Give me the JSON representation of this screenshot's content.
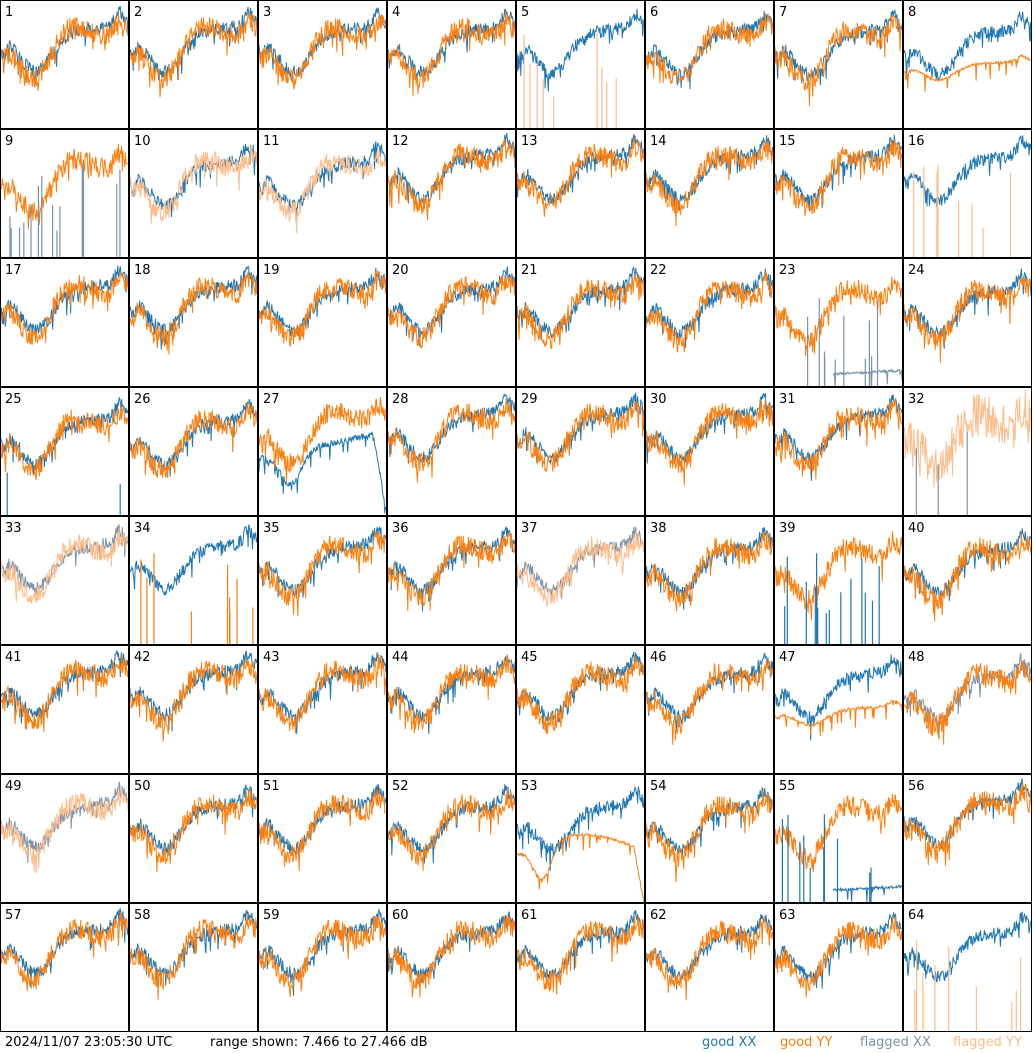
{
  "footer": {
    "timestamp": "2024/11/07 23:05:30 UTC",
    "range_text": "range shown: 7.466 to 27.466 dB",
    "legend": {
      "good_xx": "good XX",
      "good_yy": "good YY",
      "flagged_xx": "flagged XX",
      "flagged_yy": "flagged YY"
    }
  },
  "colors": {
    "good_xx": "#1f77b4",
    "good_yy": "#ff7f0e",
    "flagged_xx": "#7a93ab",
    "flagged_yy": "#ffbb88"
  },
  "chart_data": {
    "type": "line",
    "layout": "small-multiples grid, 8 columns x 8 rows",
    "ylim": [
      7.466,
      27.466
    ],
    "y_unit": "dB",
    "panels": [
      {
        "id": "1",
        "xx": "good",
        "yy": "good",
        "pattern": "normal"
      },
      {
        "id": "2",
        "xx": "good",
        "yy": "good",
        "pattern": "normal"
      },
      {
        "id": "3",
        "xx": "good",
        "yy": "good",
        "pattern": "normal"
      },
      {
        "id": "4",
        "xx": "good",
        "yy": "good",
        "pattern": "normal"
      },
      {
        "id": "5",
        "xx": "good",
        "yy": "flagged",
        "pattern": "yy_spikes"
      },
      {
        "id": "6",
        "xx": "good",
        "yy": "good",
        "pattern": "normal"
      },
      {
        "id": "7",
        "xx": "good",
        "yy": "good",
        "pattern": "normal"
      },
      {
        "id": "8",
        "xx": "good",
        "yy": "good",
        "pattern": "yy_smooth"
      },
      {
        "id": "9",
        "xx": "flagged",
        "yy": "good",
        "pattern": "xx_spikes"
      },
      {
        "id": "10",
        "xx": "good",
        "yy": "flagged",
        "pattern": "normal"
      },
      {
        "id": "11",
        "xx": "good",
        "yy": "flagged",
        "pattern": "normal"
      },
      {
        "id": "12",
        "xx": "good",
        "yy": "good",
        "pattern": "normal"
      },
      {
        "id": "13",
        "xx": "good",
        "yy": "good",
        "pattern": "normal"
      },
      {
        "id": "14",
        "xx": "good",
        "yy": "good",
        "pattern": "normal"
      },
      {
        "id": "15",
        "xx": "good",
        "yy": "good",
        "pattern": "normal"
      },
      {
        "id": "16",
        "xx": "good",
        "yy": "flagged",
        "pattern": "yy_spikes"
      },
      {
        "id": "17",
        "xx": "good",
        "yy": "good",
        "pattern": "normal"
      },
      {
        "id": "18",
        "xx": "good",
        "yy": "good",
        "pattern": "normal"
      },
      {
        "id": "19",
        "xx": "good",
        "yy": "good",
        "pattern": "normal"
      },
      {
        "id": "20",
        "xx": "good",
        "yy": "good",
        "pattern": "normal"
      },
      {
        "id": "21",
        "xx": "good",
        "yy": "good",
        "pattern": "normal"
      },
      {
        "id": "22",
        "xx": "good",
        "yy": "good",
        "pattern": "normal"
      },
      {
        "id": "23",
        "xx": "flagged",
        "yy": "good",
        "pattern": "xx_low"
      },
      {
        "id": "24",
        "xx": "good",
        "yy": "good",
        "pattern": "normal"
      },
      {
        "id": "25",
        "xx": "good",
        "yy": "good",
        "pattern": "xx_few_spikes"
      },
      {
        "id": "26",
        "xx": "good",
        "yy": "good",
        "pattern": "normal"
      },
      {
        "id": "27",
        "xx": "good",
        "yy": "good",
        "pattern": "xx_curve"
      },
      {
        "id": "28",
        "xx": "good",
        "yy": "good",
        "pattern": "normal"
      },
      {
        "id": "29",
        "xx": "good",
        "yy": "good",
        "pattern": "normal"
      },
      {
        "id": "30",
        "xx": "good",
        "yy": "good",
        "pattern": "normal"
      },
      {
        "id": "31",
        "xx": "good",
        "yy": "good",
        "pattern": "normal"
      },
      {
        "id": "32",
        "xx": "flagged",
        "yy": "flagged",
        "pattern": "flagged_noisy"
      },
      {
        "id": "33",
        "xx": "flagged",
        "yy": "flagged",
        "pattern": "flagged_overlay"
      },
      {
        "id": "34",
        "xx": "good",
        "yy": "good",
        "pattern": "yy_spikes"
      },
      {
        "id": "35",
        "xx": "good",
        "yy": "good",
        "pattern": "normal"
      },
      {
        "id": "36",
        "xx": "good",
        "yy": "good",
        "pattern": "normal"
      },
      {
        "id": "37",
        "xx": "flagged",
        "yy": "flagged",
        "pattern": "flagged_overlay"
      },
      {
        "id": "38",
        "xx": "good",
        "yy": "good",
        "pattern": "normal"
      },
      {
        "id": "39",
        "xx": "good",
        "yy": "good",
        "pattern": "xx_spikes"
      },
      {
        "id": "40",
        "xx": "good",
        "yy": "good",
        "pattern": "normal"
      },
      {
        "id": "41",
        "xx": "good",
        "yy": "good",
        "pattern": "normal"
      },
      {
        "id": "42",
        "xx": "good",
        "yy": "good",
        "pattern": "normal"
      },
      {
        "id": "43",
        "xx": "good",
        "yy": "good",
        "pattern": "normal"
      },
      {
        "id": "44",
        "xx": "good",
        "yy": "good",
        "pattern": "normal"
      },
      {
        "id": "45",
        "xx": "good",
        "yy": "good",
        "pattern": "normal"
      },
      {
        "id": "46",
        "xx": "good",
        "yy": "good",
        "pattern": "normal"
      },
      {
        "id": "47",
        "xx": "good",
        "yy": "good",
        "pattern": "yy_smooth"
      },
      {
        "id": "48",
        "xx": "flagged",
        "yy": "good",
        "pattern": "normal"
      },
      {
        "id": "49",
        "xx": "flagged",
        "yy": "flagged",
        "pattern": "flagged_overlay"
      },
      {
        "id": "50",
        "xx": "good",
        "yy": "good",
        "pattern": "normal"
      },
      {
        "id": "51",
        "xx": "good",
        "yy": "good",
        "pattern": "normal"
      },
      {
        "id": "52",
        "xx": "good",
        "yy": "good",
        "pattern": "normal"
      },
      {
        "id": "53",
        "xx": "good",
        "yy": "good",
        "pattern": "yy_curve"
      },
      {
        "id": "54",
        "xx": "good",
        "yy": "good",
        "pattern": "normal"
      },
      {
        "id": "55",
        "xx": "good",
        "yy": "good",
        "pattern": "xx_low"
      },
      {
        "id": "56",
        "xx": "good",
        "yy": "good",
        "pattern": "normal"
      },
      {
        "id": "57",
        "xx": "good",
        "yy": "good",
        "pattern": "normal"
      },
      {
        "id": "58",
        "xx": "good",
        "yy": "good",
        "pattern": "normal"
      },
      {
        "id": "59",
        "xx": "good",
        "yy": "good",
        "pattern": "normal"
      },
      {
        "id": "60",
        "xx": "good",
        "yy": "good",
        "pattern": "normal"
      },
      {
        "id": "61",
        "xx": "good",
        "yy": "good",
        "pattern": "normal"
      },
      {
        "id": "62",
        "xx": "good",
        "yy": "good",
        "pattern": "normal"
      },
      {
        "id": "63",
        "xx": "good",
        "yy": "good",
        "pattern": "normal"
      },
      {
        "id": "64",
        "xx": "good",
        "yy": "flagged",
        "pattern": "yy_spikes"
      }
    ]
  }
}
